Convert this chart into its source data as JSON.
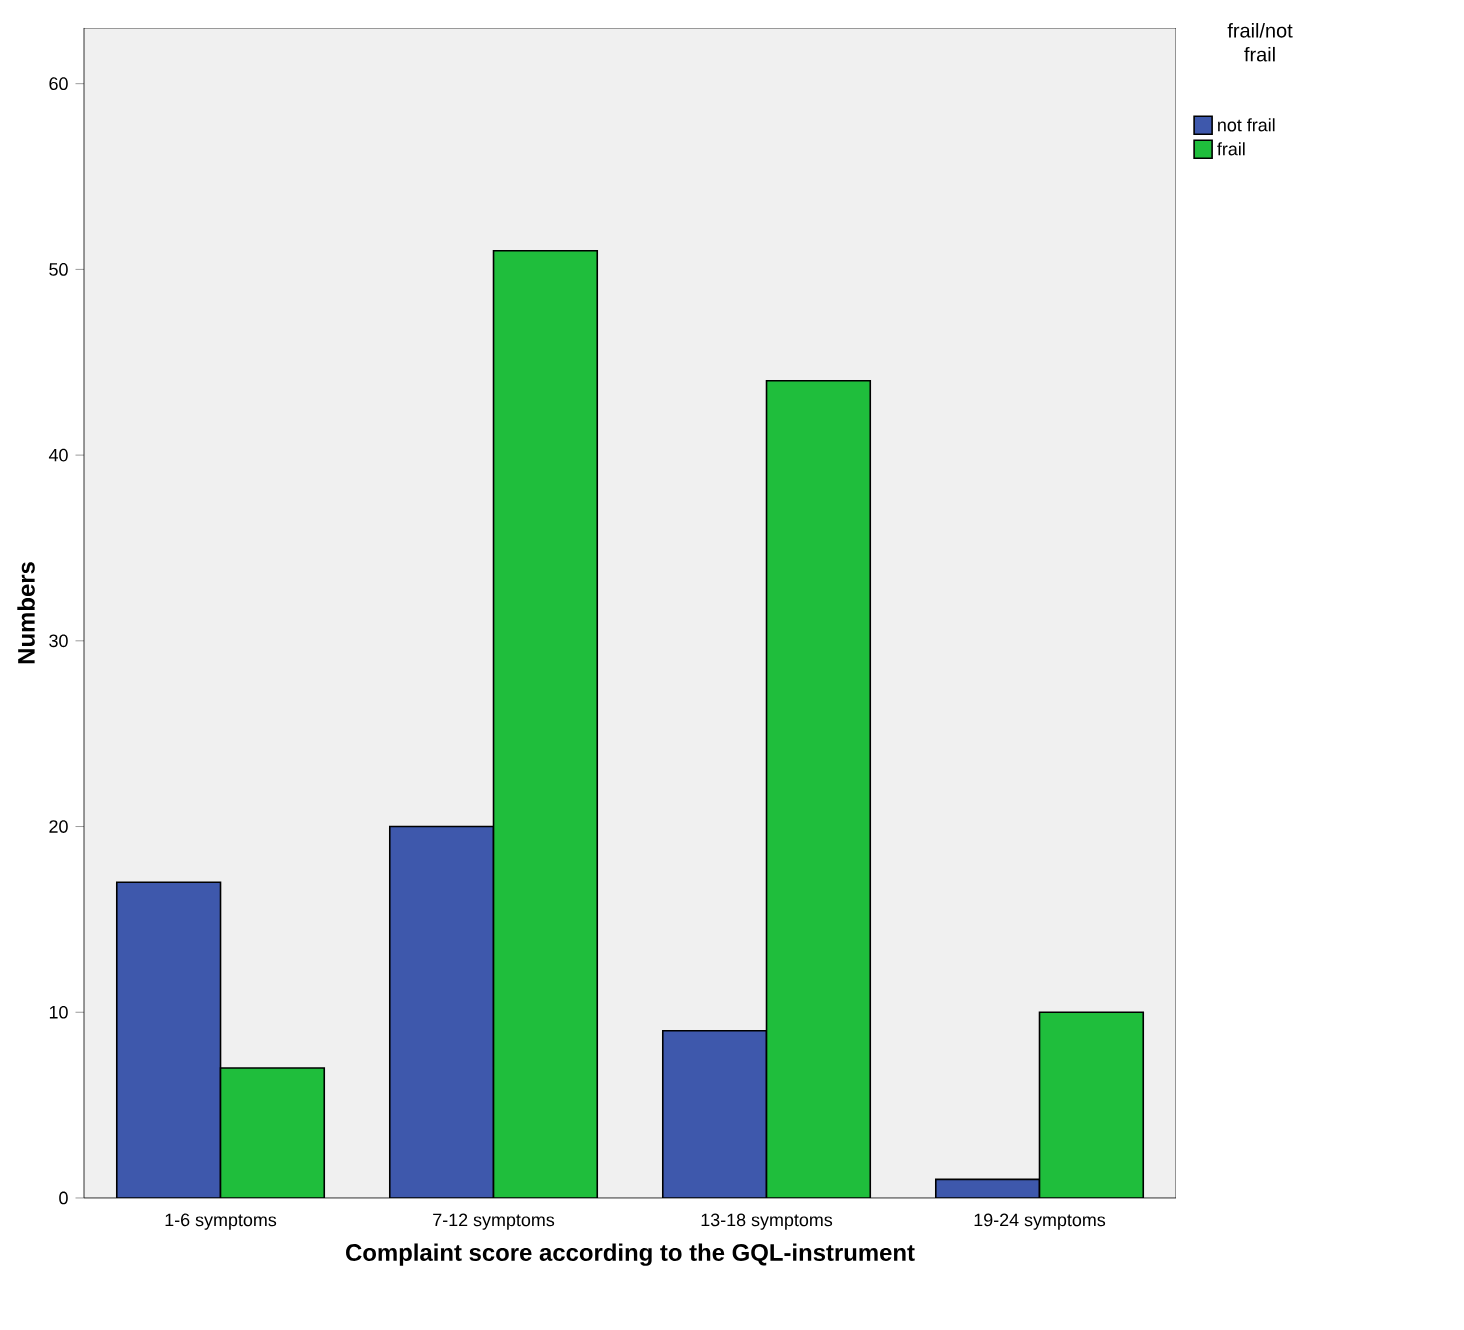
{
  "chart_data": {
    "type": "bar",
    "xlabel": "Complaint score according to the GQL-instrument",
    "ylabel": "Numbers",
    "legend_title": "frail/not frail",
    "categories": [
      "1-6 symptoms",
      "7-12 symptoms",
      "13-18 symptoms",
      "19-24 symptoms"
    ],
    "series": [
      {
        "name": "not frail",
        "color": "#3e58ac",
        "values": [
          17,
          20,
          9,
          1
        ]
      },
      {
        "name": "frail",
        "color": "#1fbe3c",
        "values": [
          7,
          51,
          44,
          10
        ]
      }
    ],
    "ylim": [
      0,
      63
    ],
    "yticks": [
      0,
      10,
      20,
      30,
      40,
      50,
      60
    ],
    "grid": false,
    "legend": "top right"
  }
}
